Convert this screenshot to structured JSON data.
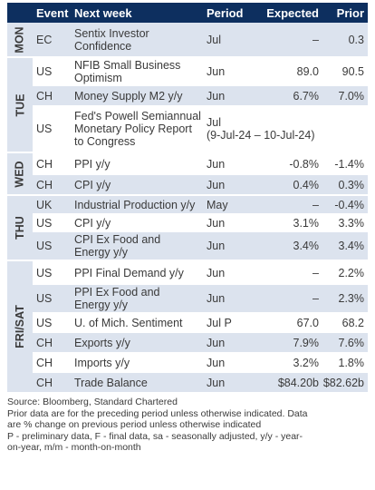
{
  "header": {
    "event": "Event",
    "next_week": "Next week",
    "period": "Period",
    "expected": "Expected",
    "prior": "Prior"
  },
  "groups": [
    {
      "day": "MON",
      "rows": [
        {
          "event": "EC",
          "desc1": "Sentix Investor",
          "desc2": "Confidence",
          "period": "Jul",
          "expected": "–",
          "prior": "0.3"
        }
      ]
    },
    {
      "day": "TUE",
      "rows": [
        {
          "event": "US",
          "desc1": "NFIB Small Business",
          "desc2": "Optimism",
          "period": "Jun",
          "expected": "89.0",
          "prior": "90.5"
        },
        {
          "event": "CH",
          "desc1": "Money Supply M2 y/y",
          "desc2": "",
          "period": "Jun",
          "expected": "6.7%",
          "prior": "7.0%"
        },
        {
          "event": "US",
          "desc1": "Fed's Powell Semiannual",
          "desc2": "Monetary Policy Report",
          "desc3": "to Congress",
          "period": "Jul",
          "period2": "(9-Jul-24 – 10-Jul-24)",
          "expected": "",
          "prior": ""
        }
      ]
    },
    {
      "day": "WED",
      "rows": [
        {
          "event": "CH",
          "desc1": "PPI y/y",
          "desc2": "",
          "period": "Jun",
          "expected": "-0.8%",
          "prior": "-1.4%"
        },
        {
          "event": "CH",
          "desc1": "CPI y/y",
          "desc2": "",
          "period": "Jun",
          "expected": "0.4%",
          "prior": "0.3%"
        }
      ]
    },
    {
      "day": "THU",
      "rows": [
        {
          "event": "UK",
          "desc1": "Industrial Production y/y",
          "desc2": "",
          "period": "May",
          "expected": "–",
          "prior": "-0.4%"
        },
        {
          "event": "US",
          "desc1": "CPI y/y",
          "desc2": "",
          "period": "Jun",
          "expected": "3.1%",
          "prior": "3.3%"
        },
        {
          "event": "US",
          "desc1": "CPI Ex Food and",
          "desc2": "Energy y/y",
          "period": "Jun",
          "expected": "3.4%",
          "prior": "3.4%"
        }
      ]
    },
    {
      "day": "FRI/SAT",
      "rows": [
        {
          "event": "US",
          "desc1": "PPI Final Demand y/y",
          "desc2": "",
          "period": "Jun",
          "expected": "–",
          "prior": "2.2%"
        },
        {
          "event": "US",
          "desc1": "PPI Ex Food and",
          "desc2": "Energy y/y",
          "period": "Jun",
          "expected": "–",
          "prior": "2.3%"
        },
        {
          "event": "US",
          "desc1": "U. of Mich. Sentiment",
          "desc2": "",
          "period": "Jul P",
          "expected": "67.0",
          "prior": "68.2"
        },
        {
          "event": "CH",
          "desc1": "Exports y/y",
          "desc2": "",
          "period": "Jun",
          "expected": "7.9%",
          "prior": "7.6%"
        },
        {
          "event": "CH",
          "desc1": "Imports y/y",
          "desc2": "",
          "period": "Jun",
          "expected": "3.2%",
          "prior": "1.8%"
        },
        {
          "event": "CH",
          "desc1": "Trade Balance",
          "desc2": "",
          "period": "Jun",
          "expected": "$84.20b",
          "prior": "$82.62b"
        }
      ]
    }
  ],
  "footer": {
    "source": "Source: Bloomberg, Standard Chartered",
    "note1": "Prior data are for the preceding period unless otherwise indicated. Data",
    "note2": "are % change on previous period unless otherwise indicated",
    "note3": "P - preliminary data, F - final data, sa - seasonally adjusted, y/y - year-",
    "note4": "on-year, m/m - month-on-month"
  },
  "colors": {
    "header_bg": "#0d2f5f",
    "row_blue": "#dce3ee",
    "row_white": "#ffffff"
  }
}
